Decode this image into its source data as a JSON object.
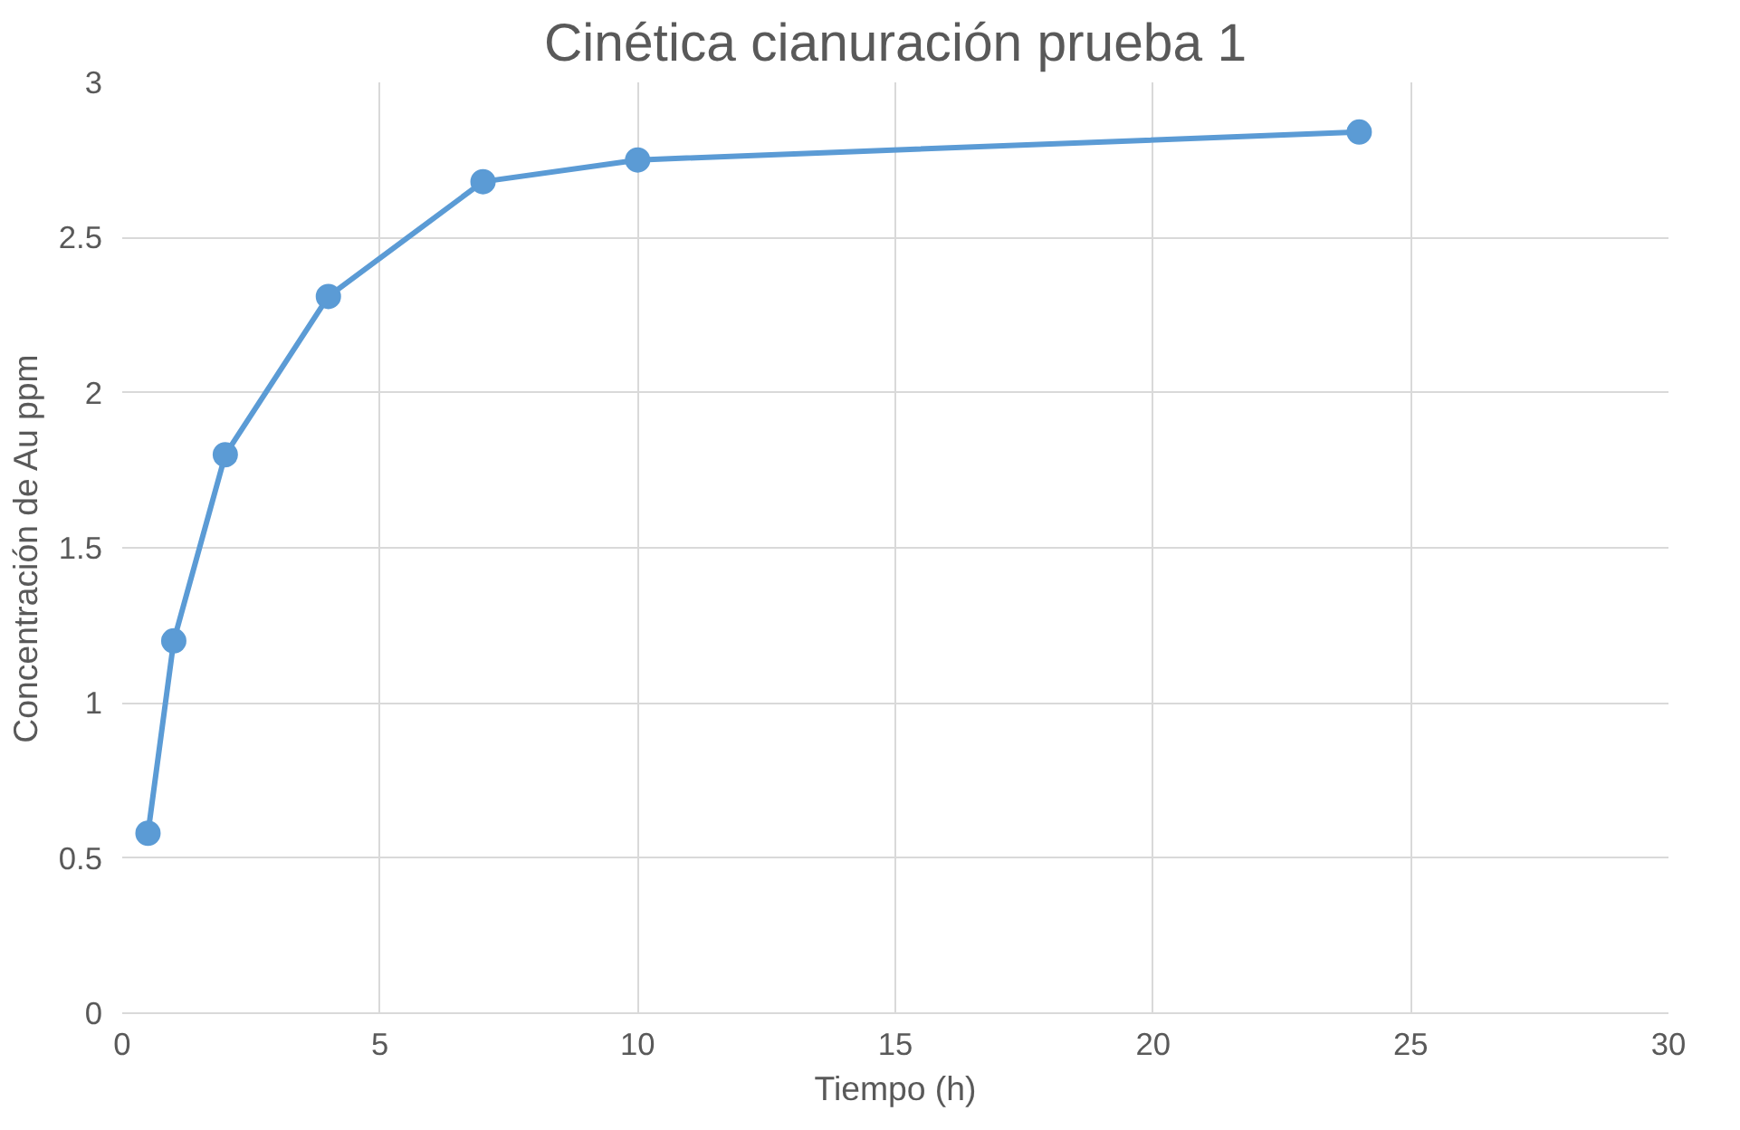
{
  "chart_data": {
    "type": "line",
    "title": "Cinética cianuración prueba 1",
    "xlabel": "Tiempo (h)",
    "ylabel": "Concentración de Au ppm",
    "x": [
      0.5,
      1,
      2,
      4,
      7,
      10,
      24
    ],
    "series": [
      {
        "color": "#5b9bd5",
        "values": [
          0.58,
          1.2,
          1.8,
          2.31,
          2.68,
          2.75,
          2.84
        ]
      }
    ],
    "xlim": [
      0,
      30
    ],
    "xticks": [
      0,
      5,
      10,
      15,
      20,
      25,
      30
    ],
    "ylim": [
      0,
      3
    ],
    "yticks": [
      0,
      0.5,
      1,
      1.5,
      2,
      2.5,
      3
    ],
    "grid": true,
    "marker": "circle",
    "line_style": "solid"
  }
}
